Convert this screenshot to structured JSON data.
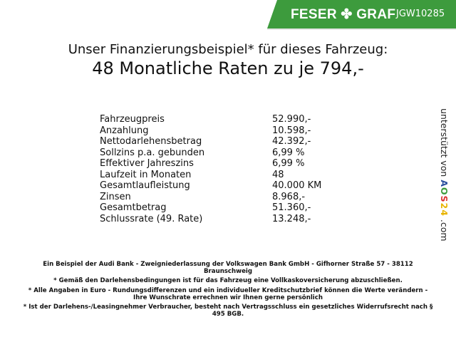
{
  "header": {
    "brand": "FESER ✤ GRAF",
    "brand_color": "#3d9b3d",
    "vehicle_code": "JGW10285"
  },
  "title": {
    "line1": "Unser Finanzierungsbeispiel* für dieses Fahrzeug:",
    "line2": "48 Monatliche Raten zu je 794,-"
  },
  "rows": [
    {
      "label": "Fahrzeugpreis",
      "value": "52.990,-"
    },
    {
      "label": "Anzahlung",
      "value": "10.598,-"
    },
    {
      "label": "Nettodarlehensbetrag",
      "value": "42.392,-"
    },
    {
      "label": "Sollzins p.a. gebunden",
      "value": "6,99 %"
    },
    {
      "label": "Effektiver Jahreszins",
      "value": "6,99 %"
    },
    {
      "label": "Laufzeit in Monaten",
      "value": "48"
    },
    {
      "label": "Gesamtlaufleistung",
      "value": "40.000 KM"
    },
    {
      "label": "Zinsen",
      "value": "8.968,-"
    },
    {
      "label": "Gesamtbetrag",
      "value": "51.360,-"
    },
    {
      "label": "Schlussrate (49. Rate)",
      "value": "13.248,-"
    }
  ],
  "side": {
    "prefix": "unterstützt von ",
    "logo": "AOS24",
    "suffix": " .com"
  },
  "footer": [
    "Ein Beispiel der Audi Bank - Zweigniederlassung der Volkswagen Bank GmbH - Gifhorner Straße 57 - 38112 Braunschweig",
    "* Gemäß den Darlehensbedingungen ist für das Fahrzeug eine Vollkaskoversicherung abzuschließen.",
    "* Alle Angaben in Euro - Rundungsdifferenzen und ein individueller Kreditschutzbrief können die Werte verändern - Ihre Wunschrate errechnen wir Ihnen gerne persönlich",
    "* Ist der Darlehens-/Leasingnehmer Verbraucher, besteht nach Vertragsschluss ein gesetzliches Widerrufsrecht nach § 495 BGB."
  ]
}
